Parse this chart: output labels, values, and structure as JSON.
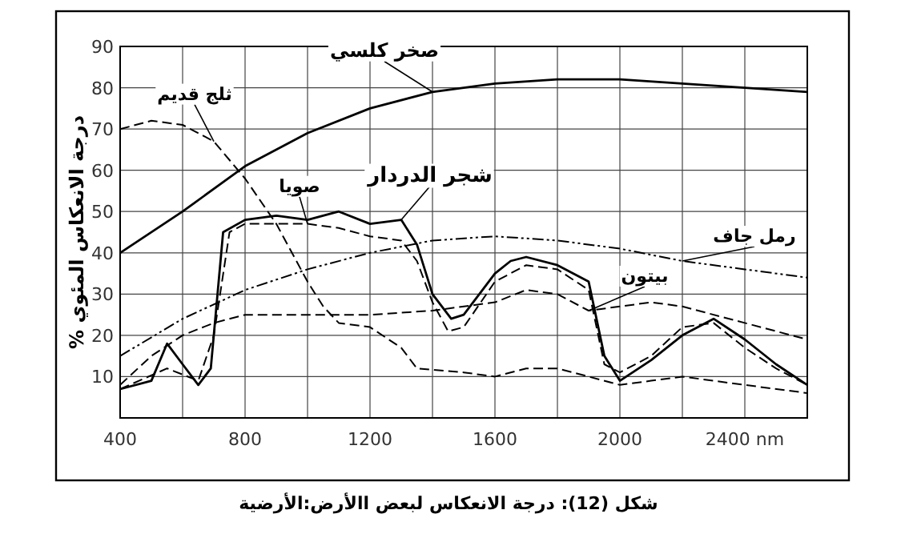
{
  "chart_data": {
    "type": "line",
    "ylabel": "درجة الانعكاس المئوي %",
    "annotations": [
      "شكل (12): درجة الانعكاس لبعض االأرض:الأرضية"
    ],
    "xlim": [
      400,
      2600
    ],
    "ylim": [
      0,
      90
    ],
    "xticks": [
      400,
      {
        "value": 600,
        "label": null
      },
      800,
      {
        "value": 1000,
        "label": null
      },
      1200,
      {
        "value": 1400,
        "label": null
      },
      1600,
      {
        "value": 1800,
        "label": null
      },
      2000,
      {
        "value": 2200,
        "label": null
      },
      {
        "value": 2400,
        "label": "2400 nm"
      },
      {
        "value": 2600,
        "label": null
      }
    ],
    "yticks": [
      {
        "value": 0,
        "label": null
      },
      10,
      20,
      30,
      40,
      50,
      60,
      70,
      80,
      90
    ],
    "grid": true,
    "series": [
      {
        "name": "صخر كلسي",
        "color": "#000000",
        "line_style": "solid",
        "x": [
          400,
          600,
          800,
          1000,
          1200,
          1400,
          1600,
          1800,
          2000,
          2200,
          2400,
          2600
        ],
        "values": [
          40,
          50,
          61,
          69,
          75,
          79,
          81,
          82,
          82,
          81,
          80,
          79
        ]
      },
      {
        "name": "ثلج قديم",
        "color": "#000000",
        "line_style": "dashed",
        "x": [
          400,
          500,
          600,
          700,
          800,
          900,
          1000,
          1050,
          1100,
          1200,
          1300,
          1350,
          1500,
          1600,
          1700,
          1800,
          1900,
          2000,
          2100,
          2200,
          2300,
          2400,
          2600
        ],
        "values": [
          70,
          72,
          71,
          67,
          58,
          47,
          33,
          27,
          23,
          22,
          17,
          12,
          11,
          10,
          12,
          12,
          10,
          8,
          9,
          10,
          9,
          8,
          6
        ]
      },
      {
        "name": "شجر الدردار",
        "color": "#000000",
        "line_style": "solid",
        "x": [
          400,
          500,
          550,
          600,
          650,
          690,
          730,
          800,
          900,
          1000,
          1100,
          1200,
          1300,
          1350,
          1400,
          1460,
          1500,
          1600,
          1650,
          1700,
          1800,
          1900,
          1950,
          2000,
          2100,
          2200,
          2300,
          2400,
          2500,
          2600
        ],
        "values": [
          7,
          9,
          18,
          13,
          8,
          12,
          45,
          48,
          49,
          48,
          50,
          47,
          48,
          42,
          30,
          24,
          25,
          35,
          38,
          39,
          37,
          33,
          15,
          9,
          14,
          20,
          24,
          19,
          13,
          8
        ]
      },
      {
        "name": "صويا",
        "color": "#000000",
        "line_style": "dashed",
        "x": [
          400,
          550,
          650,
          700,
          750,
          800,
          1000,
          1100,
          1200,
          1300,
          1350,
          1400,
          1450,
          1500,
          1600,
          1700,
          1800,
          1900,
          1950,
          2000,
          2100,
          2200,
          2300,
          2400,
          2500,
          2600
        ],
        "values": [
          7,
          12,
          9,
          20,
          45,
          47,
          47,
          46,
          44,
          43,
          38,
          28,
          21,
          22,
          33,
          37,
          36,
          31,
          13,
          11,
          15,
          22,
          23,
          17,
          12,
          8
        ]
      },
      {
        "name": "رمل جاف",
        "color": "#000000",
        "line_style": "dashdot",
        "x": [
          400,
          600,
          800,
          1000,
          1200,
          1400,
          1600,
          1800,
          2000,
          2200,
          2400,
          2600
        ],
        "values": [
          15,
          24,
          31,
          36,
          40,
          43,
          44,
          43,
          41,
          38,
          36,
          34
        ]
      },
      {
        "name": "بيتون",
        "color": "#000000",
        "line_style": "dashed",
        "x": [
          400,
          500,
          600,
          700,
          800,
          1000,
          1200,
          1400,
          1600,
          1700,
          1800,
          1900,
          2000,
          2100,
          2200,
          2400,
          2600
        ],
        "values": [
          8,
          15,
          20,
          23,
          25,
          25,
          25,
          26,
          28,
          31,
          30,
          26,
          27,
          28,
          27,
          23,
          19
        ]
      }
    ]
  }
}
